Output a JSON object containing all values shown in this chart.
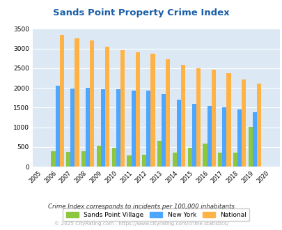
{
  "title": "Sands Point Property Crime Index",
  "years": [
    2005,
    2006,
    2007,
    2008,
    2009,
    2010,
    2011,
    2012,
    2013,
    2014,
    2015,
    2016,
    2017,
    2018,
    2019,
    2020
  ],
  "sands_point": [
    0,
    400,
    380,
    400,
    530,
    480,
    290,
    300,
    650,
    360,
    490,
    590,
    360,
    360,
    1010,
    0
  ],
  "new_york": [
    0,
    2050,
    1990,
    2010,
    1960,
    1960,
    1930,
    1940,
    1840,
    1710,
    1600,
    1540,
    1510,
    1460,
    1380,
    0
  ],
  "national": [
    0,
    3340,
    3250,
    3210,
    3040,
    2960,
    2910,
    2860,
    2720,
    2590,
    2500,
    2470,
    2370,
    2210,
    2110,
    0
  ],
  "color_sands": "#8dc63f",
  "color_ny": "#4da6ff",
  "color_national": "#ffb347",
  "bg_color": "#dce9f5",
  "title_color": "#1a5fa8",
  "subtitle": "Crime Index corresponds to incidents per 100,000 inhabitants",
  "footer": "© 2025 CityRating.com - https://www.cityrating.com/crime-statistics/",
  "ylim": [
    0,
    3500
  ],
  "yticks": [
    0,
    500,
    1000,
    1500,
    2000,
    2500,
    3000,
    3500
  ]
}
